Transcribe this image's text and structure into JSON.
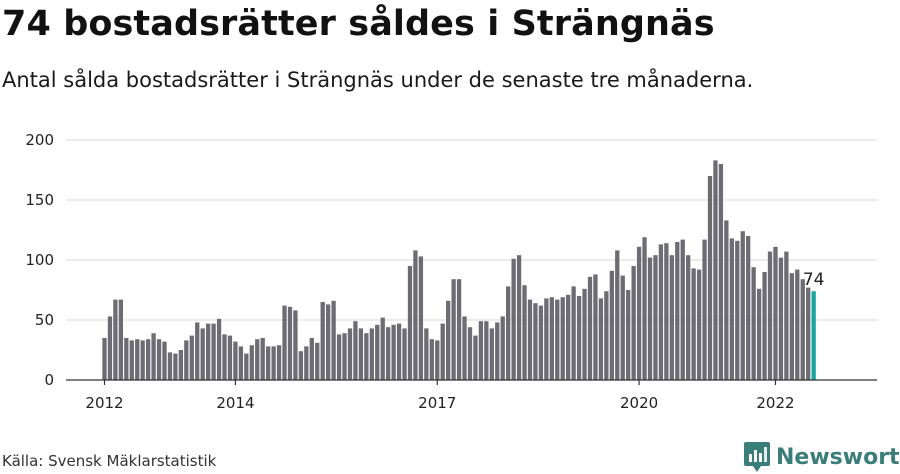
{
  "title": "74 bostadsrätter såldes i Strängnäs",
  "subtitle": "Antal sålda bostadsrätter i Strängnäs under de senaste tre månaderna.",
  "source": "Källa: Svensk Mäklarstatistik",
  "brand": "Newsworthy",
  "colors": {
    "bar": "#6d6c72",
    "highlight": "#1aa6a0",
    "grid": "#d9d9d9",
    "axis": "#333333",
    "brand": "#3b7d79"
  },
  "chart_data": {
    "type": "bar",
    "title": "74 bostadsrätter såldes i Strängnäs",
    "subtitle": "Antal sålda bostadsrätter i Strängnäs under de senaste tre månaderna.",
    "xlabel": "",
    "ylabel": "",
    "ylim": [
      0,
      200
    ],
    "yticks": [
      0,
      50,
      100,
      150,
      200
    ],
    "xtick_labels": [
      "2012",
      "2014",
      "2017",
      "2020",
      "2022"
    ],
    "xtick_bar_index": [
      0,
      24,
      61,
      98,
      123
    ],
    "grid": true,
    "start": "2012-01",
    "frequency": "monthly",
    "highlight_last": true,
    "last_label": "74",
    "values": [
      35,
      53,
      67,
      67,
      35,
      33,
      34,
      33,
      34,
      39,
      34,
      32,
      23,
      22,
      25,
      33,
      37,
      48,
      43,
      47,
      47,
      51,
      38,
      37,
      32,
      28,
      22,
      29,
      34,
      35,
      28,
      28,
      29,
      62,
      61,
      58,
      24,
      28,
      35,
      31,
      65,
      63,
      66,
      38,
      39,
      43,
      49,
      43,
      39,
      43,
      46,
      52,
      44,
      46,
      47,
      43,
      95,
      108,
      103,
      43,
      34,
      33,
      47,
      66,
      84,
      84,
      53,
      44,
      37,
      49,
      49,
      43,
      48,
      53,
      78,
      101,
      104,
      79,
      67,
      64,
      62,
      68,
      69,
      67,
      69,
      71,
      78,
      70,
      76,
      86,
      88,
      68,
      74,
      91,
      108,
      87,
      75,
      95,
      111,
      119,
      102,
      104,
      113,
      114,
      104,
      115,
      117,
      104,
      93,
      92,
      117,
      170,
      183,
      180,
      133,
      118,
      116,
      124,
      120,
      94,
      76,
      90,
      107,
      111,
      102,
      107,
      89,
      92,
      84,
      77,
      74
    ]
  }
}
